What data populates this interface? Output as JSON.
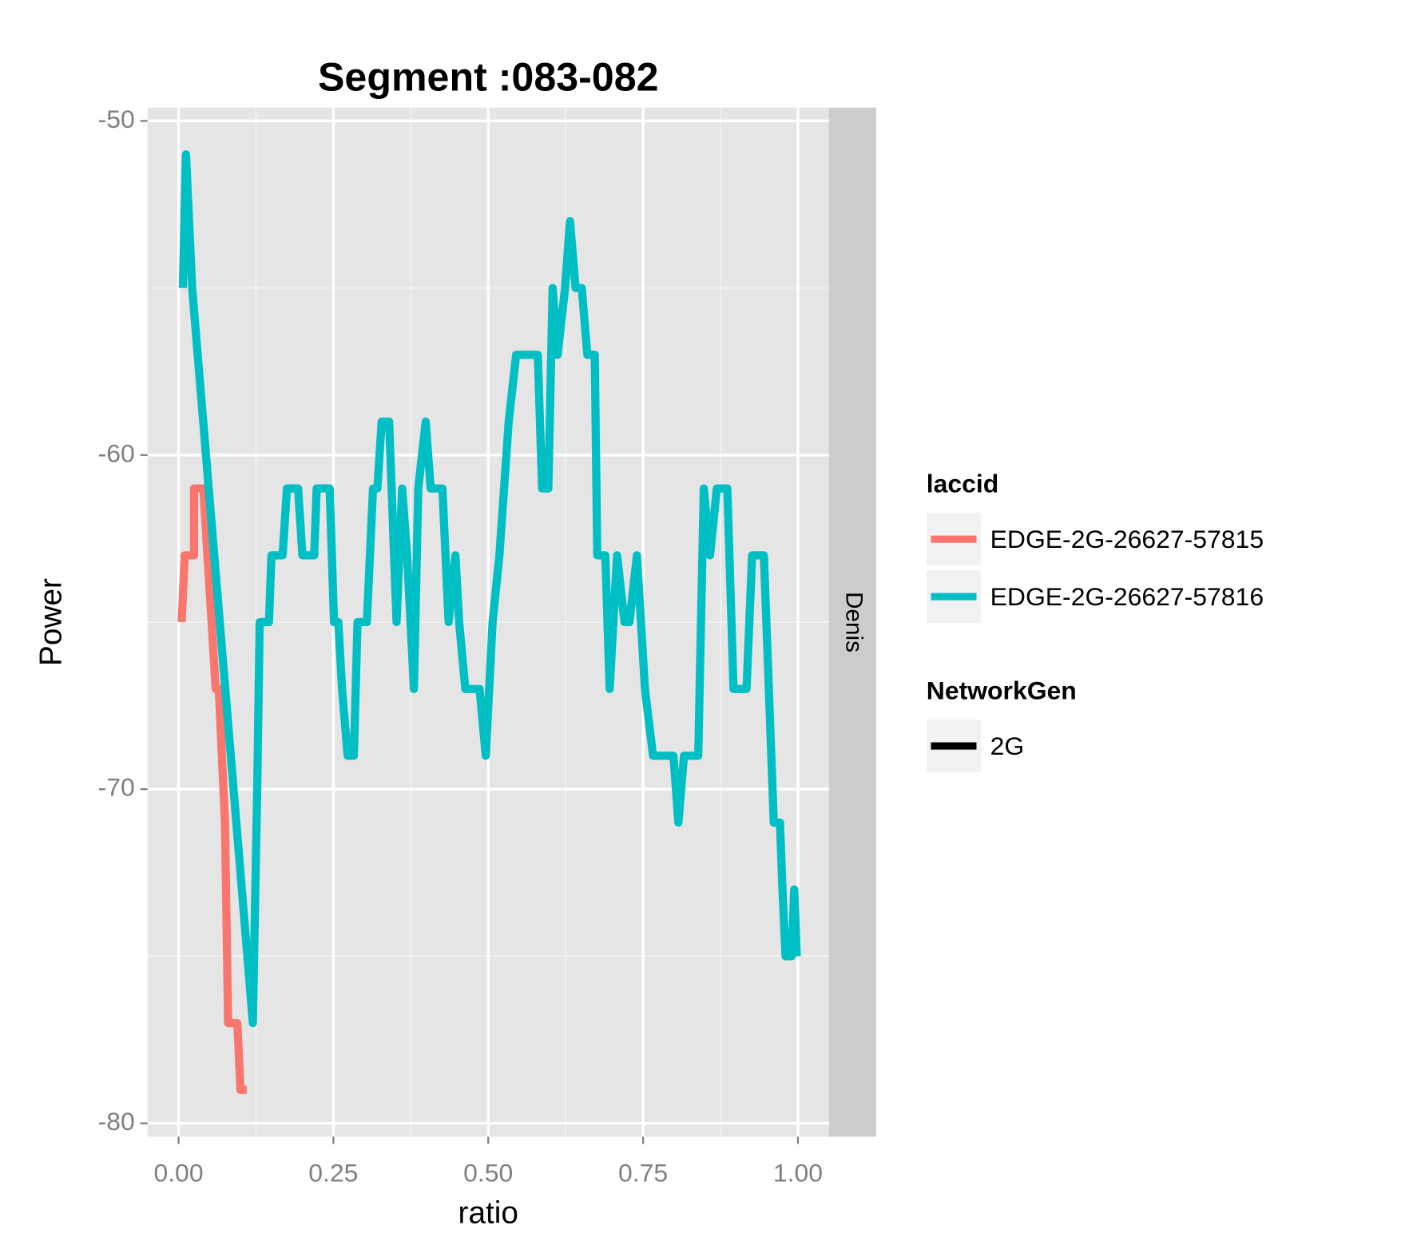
{
  "chart_data": {
    "type": "line",
    "title": "Segment :083-082",
    "x_label": "ratio",
    "y_label": "Power",
    "facet_label": "Denis",
    "xlim": [
      -0.05,
      1.05
    ],
    "ylim": [
      -80.4,
      -49.6
    ],
    "xticks": [
      {
        "value": 0,
        "label": "0.00"
      },
      {
        "value": 0.25,
        "label": "0.25"
      },
      {
        "value": 0.5,
        "label": "0.50"
      },
      {
        "value": 0.75,
        "label": "0.75"
      },
      {
        "value": 1,
        "label": "1.00"
      }
    ],
    "yticks": [
      -50,
      -60,
      -70,
      -80
    ],
    "grid": true,
    "legend_title": "laccid",
    "legend2_title": "NetworkGen",
    "legend2_entries": [
      "2G"
    ],
    "series": [
      {
        "name": "EDGE-2G-26627-57815",
        "color": "#f8766d",
        "x": [
          0.005,
          0.01,
          0.025,
          0.025,
          0.04,
          0.06,
          0.065,
          0.075,
          0.08,
          0.095,
          0.1,
          0.11
        ],
        "values": [
          -65,
          -63,
          -63,
          -61,
          -61,
          -67,
          -67,
          -71,
          -77,
          -77,
          -79,
          -79
        ]
      },
      {
        "name": "EDGE-2G-26627-57816",
        "color": "#00bfc4",
        "x": [
          0.007,
          0.012,
          0.022,
          0.12,
          0.127,
          0.131,
          0.146,
          0.15,
          0.168,
          0.175,
          0.193,
          0.2,
          0.219,
          0.223,
          0.244,
          0.251,
          0.258,
          0.264,
          0.273,
          0.283,
          0.289,
          0.304,
          0.314,
          0.321,
          0.328,
          0.34,
          0.352,
          0.361,
          0.369,
          0.38,
          0.387,
          0.399,
          0.407,
          0.426,
          0.436,
          0.447,
          0.453,
          0.463,
          0.486,
          0.496,
          0.507,
          0.518,
          0.533,
          0.545,
          0.58,
          0.587,
          0.597,
          0.604,
          0.612,
          0.624,
          0.632,
          0.641,
          0.651,
          0.66,
          0.672,
          0.676,
          0.689,
          0.696,
          0.708,
          0.72,
          0.728,
          0.74,
          0.753,
          0.766,
          0.799,
          0.807,
          0.816,
          0.839,
          0.848,
          0.858,
          0.869,
          0.886,
          0.896,
          0.917,
          0.926,
          0.945,
          0.953,
          0.961,
          0.971,
          0.975,
          0.98,
          0.99,
          0.994,
          0.998
        ],
        "values": [
          -55,
          -51,
          -55,
          -77,
          -70,
          -65,
          -65,
          -63,
          -63,
          -61,
          -61,
          -63,
          -63,
          -61,
          -61,
          -65,
          -65,
          -67,
          -69,
          -69,
          -65,
          -65,
          -61,
          -61,
          -59,
          -59,
          -65,
          -61,
          -63,
          -67,
          -61,
          -59,
          -61,
          -61,
          -65,
          -63,
          -65,
          -67,
          -67,
          -69,
          -65,
          -63,
          -59,
          -57,
          -57,
          -61,
          -61,
          -55,
          -57,
          -55,
          -53,
          -55,
          -55,
          -57,
          -57,
          -63,
          -63,
          -67,
          -63,
          -65,
          -65,
          -63,
          -67,
          -69,
          -69,
          -71,
          -69,
          -69,
          -61,
          -63,
          -61,
          -61,
          -67,
          -67,
          -63,
          -63,
          -67,
          -71,
          -71,
          -73,
          -75,
          -75,
          -73,
          -75
        ]
      }
    ]
  }
}
